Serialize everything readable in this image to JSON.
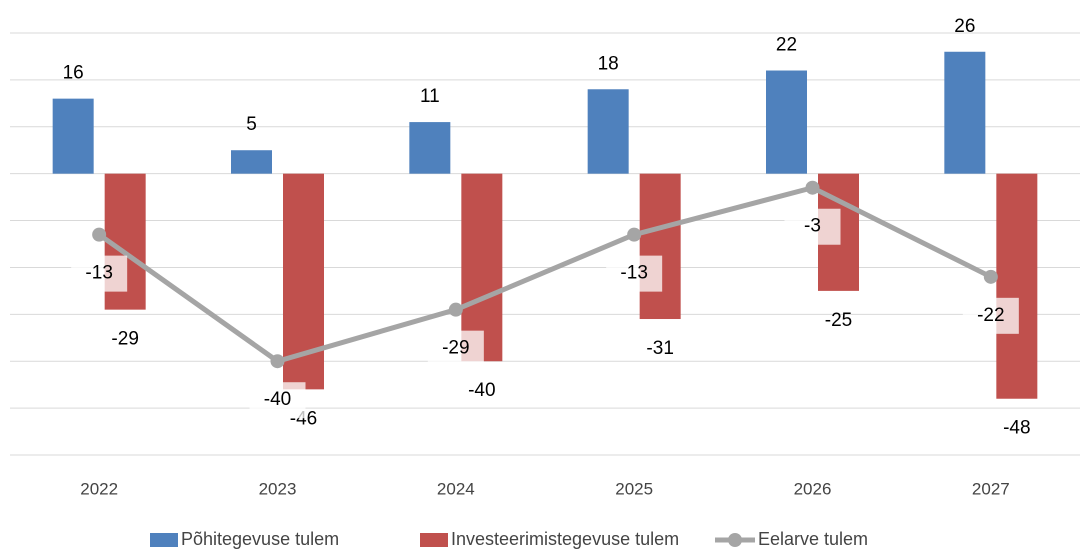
{
  "chart_data": {
    "type": "bar-line",
    "categories": [
      "2022",
      "2023",
      "2024",
      "2025",
      "2026",
      "2027"
    ],
    "series": [
      {
        "name": "Põhitegevuse tulem",
        "type": "bar",
        "color": "#4f81bd",
        "values": [
          16,
          5,
          11,
          18,
          22,
          26
        ]
      },
      {
        "name": "Investeerimistegevuse tulem",
        "type": "bar",
        "color": "#c0504d",
        "values": [
          -29,
          -46,
          -40,
          -31,
          -25,
          -48
        ]
      },
      {
        "name": "Eelarve tulem",
        "type": "line",
        "color": "#a5a5a5",
        "values": [
          -13,
          -40,
          -29,
          -13,
          -3,
          -22
        ]
      }
    ],
    "ylim": [
      -60,
      30
    ],
    "yticks": [
      -60,
      -50,
      -40,
      -30,
      -20,
      -10,
      0,
      10,
      20,
      30
    ],
    "grid": true,
    "legend": "bottom"
  }
}
